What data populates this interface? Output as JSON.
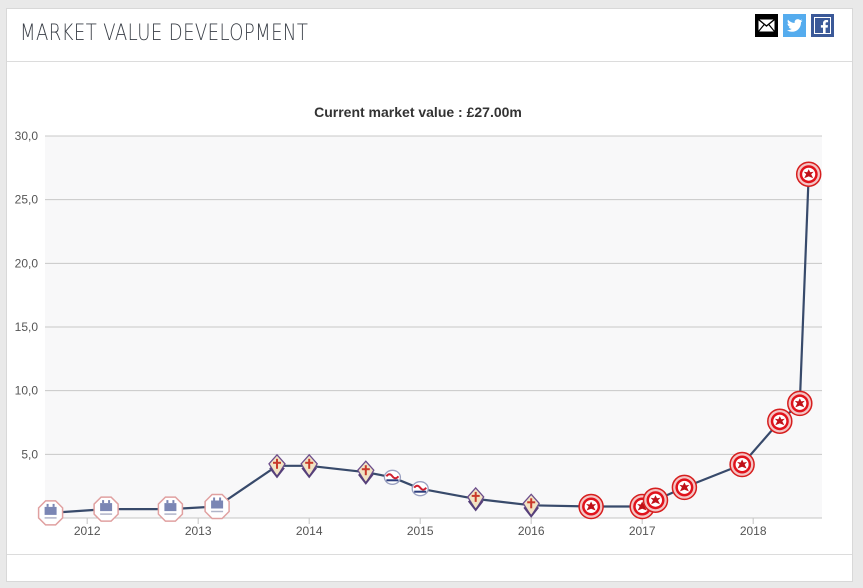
{
  "header": {
    "title": "MARKET VALUE DEVELOPMENT",
    "share": [
      {
        "name": "email-share-icon",
        "color": "#000000"
      },
      {
        "name": "twitter-share-icon",
        "color": "#55acee"
      },
      {
        "name": "facebook-share-icon",
        "color": "#3b5998"
      }
    ]
  },
  "chart_data": {
    "type": "line",
    "subtitle": "Current market value : £27.00m",
    "title": "",
    "xlabel": "",
    "ylabel": "",
    "ylim": [
      0,
      30
    ],
    "xlim": [
      2011.62,
      2018.62
    ],
    "yticks": [
      "5,0",
      "10,0",
      "15,0",
      "20,0",
      "25,0",
      "30,0"
    ],
    "ytick_values": [
      5,
      10,
      15,
      20,
      25,
      30
    ],
    "xticks": [
      "2012",
      "2013",
      "2014",
      "2015",
      "2016",
      "2017",
      "2018"
    ],
    "xtick_values": [
      2012,
      2013,
      2014,
      2015,
      2016,
      2017,
      2018
    ],
    "grid": true,
    "line_color": "#384a6b",
    "plot_background": "#f8f8f9",
    "series": [
      {
        "x": [
          2011.67,
          2012.17,
          2012.75,
          2013.17,
          2013.71,
          2014.0,
          2014.51,
          2014.75,
          2015.0,
          2015.5,
          2016.0,
          2016.54,
          2017.0,
          2017.12,
          2017.38,
          2017.9,
          2018.24,
          2018.42,
          2018.5
        ],
        "y": [
          0.4,
          0.7,
          0.7,
          0.9,
          4.1,
          4.1,
          3.6,
          3.2,
          2.3,
          1.5,
          1.0,
          0.9,
          0.9,
          1.4,
          2.4,
          4.2,
          7.6,
          9.0,
          27.0
        ],
        "clubs": [
          "club-a",
          "club-a",
          "club-a",
          "club-a",
          "club-b",
          "club-b",
          "club-b",
          "club-c",
          "club-c",
          "club-b",
          "club-b",
          "club-d",
          "club-d",
          "club-d",
          "club-d",
          "club-d",
          "club-d",
          "club-d",
          "club-d"
        ]
      }
    ],
    "markers": {
      "club-a": "club-a-crest-icon",
      "club-b": "club-b-crest-icon",
      "club-c": "club-c-crest-icon",
      "club-d": "club-d-crest-icon"
    }
  }
}
